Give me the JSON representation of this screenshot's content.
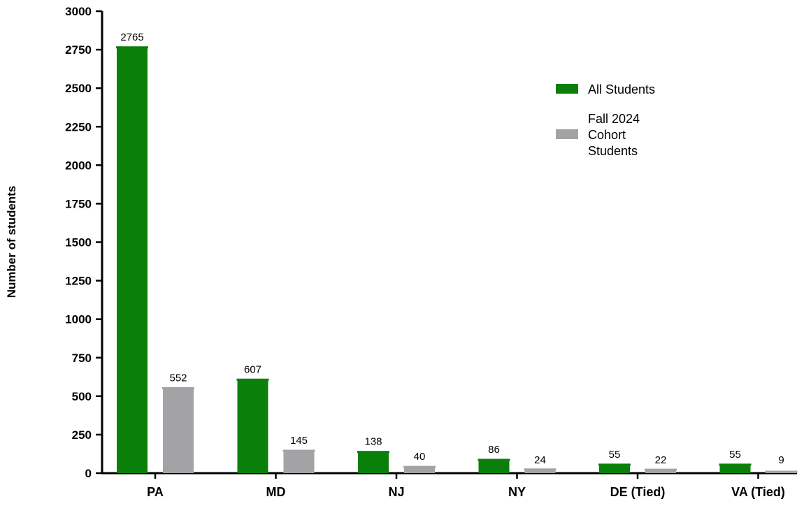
{
  "chart_data": {
    "type": "bar",
    "title": "",
    "xlabel": "",
    "ylabel": "Number of students",
    "ylim": [
      0,
      3000
    ],
    "yticks": [
      0,
      250,
      500,
      750,
      1000,
      1250,
      1500,
      1750,
      2000,
      2250,
      2500,
      2750,
      3000
    ],
    "grid": false,
    "legend_position": "top-right",
    "categories": [
      "PA",
      "MD",
      "NJ",
      "NY",
      "DE (Tied)",
      "VA (Tied)"
    ],
    "series": [
      {
        "name": "All Students",
        "legend_lines": [
          "All Students"
        ],
        "color": "#0a800a",
        "values": [
          2765,
          607,
          138,
          86,
          55,
          55
        ]
      },
      {
        "name": "Fall 2024 Cohort Students",
        "legend_lines": [
          "Fall 2024",
          "Cohort",
          "Students"
        ],
        "color": "#a3a3a6",
        "values": [
          552,
          145,
          40,
          24,
          22,
          9
        ]
      }
    ]
  }
}
